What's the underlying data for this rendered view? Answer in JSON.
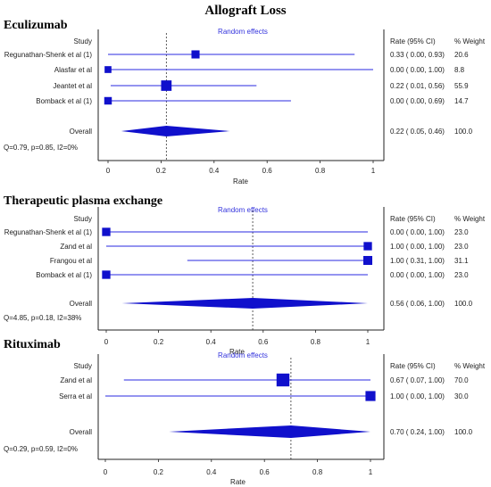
{
  "figure_title": "Allograft Loss",
  "column_headers": {
    "study": "Study",
    "rate": "Rate (95% CI)",
    "weight": "% Weight",
    "model": "Random effects",
    "xlabel": "Rate"
  },
  "chart_data": [
    {
      "type": "forest",
      "panel_title": "Eculizumab",
      "model": "Random effects",
      "xlim": [
        0,
        1
      ],
      "xticks": [
        "0",
        "0.2",
        "0.4",
        "0.6",
        "0.8",
        "1"
      ],
      "xlabel": "Rate",
      "studies": [
        {
          "label": "Regunathan-Shenk et al (1)",
          "rate": 0.33,
          "lo": 0.0,
          "hi": 0.93,
          "ci_text": "0.33  ( 0.00, 0.93)",
          "weight": "20.6"
        },
        {
          "label": "Alasfar et al",
          "rate": 0.0,
          "lo": 0.0,
          "hi": 1.0,
          "ci_text": "0.00  ( 0.00, 1.00)",
          "weight": "8.8"
        },
        {
          "label": "Jeantet et al",
          "rate": 0.22,
          "lo": 0.01,
          "hi": 0.56,
          "ci_text": "0.22  ( 0.01, 0.56)",
          "weight": "55.9"
        },
        {
          "label": "Bomback et al (1)",
          "rate": 0.0,
          "lo": 0.0,
          "hi": 0.69,
          "ci_text": "0.00  ( 0.00, 0.69)",
          "weight": "14.7"
        }
      ],
      "overall": {
        "label": "Overall",
        "rate": 0.22,
        "lo": 0.05,
        "hi": 0.46,
        "ci_text": "0.22  ( 0.05, 0.46)",
        "weight": "100.0"
      },
      "heterogeneity": "Q=0.79, p=0.85, I2=0%"
    },
    {
      "type": "forest",
      "panel_title": "Therapeutic plasma exchange",
      "model": "Random effects",
      "xlim": [
        0,
        1
      ],
      "xticks": [
        "0",
        "0.2",
        "0.4",
        "0.6",
        "0.8",
        "1"
      ],
      "xlabel": "Rate",
      "studies": [
        {
          "label": "Regunathan-Shenk et al (1)",
          "rate": 0.0,
          "lo": 0.0,
          "hi": 1.0,
          "ci_text": "0.00  ( 0.00, 1.00)",
          "weight": "23.0"
        },
        {
          "label": "Zand et al",
          "rate": 1.0,
          "lo": 0.0,
          "hi": 1.0,
          "ci_text": "1.00  ( 0.00, 1.00)",
          "weight": "23.0"
        },
        {
          "label": "Frangou et al",
          "rate": 1.0,
          "lo": 0.31,
          "hi": 1.0,
          "ci_text": "1.00  ( 0.31, 1.00)",
          "weight": "31.1"
        },
        {
          "label": "Bomback et al (1)",
          "rate": 0.0,
          "lo": 0.0,
          "hi": 1.0,
          "ci_text": "0.00  ( 0.00, 1.00)",
          "weight": "23.0"
        }
      ],
      "overall": {
        "label": "Overall",
        "rate": 0.56,
        "lo": 0.06,
        "hi": 1.0,
        "ci_text": "0.56  ( 0.06, 1.00)",
        "weight": "100.0"
      },
      "heterogeneity": "Q=4.85, p=0.18, I2=38%"
    },
    {
      "type": "forest",
      "panel_title": "Rituximab",
      "model": "Random effects",
      "xlim": [
        0,
        1
      ],
      "xticks": [
        "0",
        "0.2",
        "0.4",
        "0.6",
        "0.8",
        "1"
      ],
      "xlabel": "Rate",
      "studies": [
        {
          "label": "Zand et al",
          "rate": 0.67,
          "lo": 0.07,
          "hi": 1.0,
          "ci_text": "0.67  ( 0.07, 1.00)",
          "weight": "70.0"
        },
        {
          "label": "Serra et al",
          "rate": 1.0,
          "lo": 0.0,
          "hi": 1.0,
          "ci_text": "1.00  ( 0.00, 1.00)",
          "weight": "30.0"
        }
      ],
      "overall": {
        "label": "Overall",
        "rate": 0.7,
        "lo": 0.24,
        "hi": 1.0,
        "ci_text": "0.70  ( 0.24, 1.00)",
        "weight": "100.0"
      },
      "heterogeneity": "Q=0.29, p=0.59, I2=0%"
    }
  ],
  "colors": {
    "marker": "#1010cc",
    "line": "#2a2ae0",
    "axis": "#222222",
    "model_label": "#3333dd",
    "text": "#222222"
  }
}
